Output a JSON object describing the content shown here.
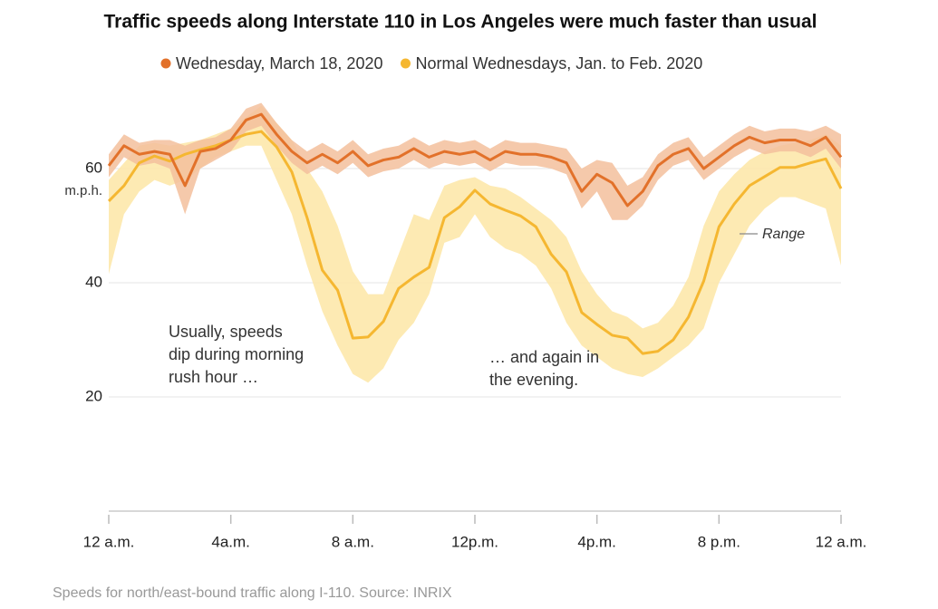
{
  "chart_data": {
    "type": "line",
    "title": "Traffic speeds along Interstate 110 in Los Angeles were much faster than usual",
    "y_unit": "m.p.h.",
    "source": "Speeds for north/east-bound traffic along I-110. Source: INRIX",
    "range_label": "Range",
    "annotations": [
      {
        "lines": [
          "Usually, speeds",
          "dip during morning",
          "rush hour …"
        ]
      },
      {
        "lines": [
          "… and again in",
          "the evening."
        ]
      }
    ],
    "xlim": [
      0,
      24
    ],
    "xticks": [
      {
        "value": 0,
        "label": "12 a.m."
      },
      {
        "value": 4,
        "label": "4a.m."
      },
      {
        "value": 8,
        "label": "8 a.m."
      },
      {
        "value": 12,
        "label": "12p.m."
      },
      {
        "value": 16,
        "label": "4p.m."
      },
      {
        "value": 20,
        "label": "8 p.m."
      },
      {
        "value": 24,
        "label": "12 a.m."
      }
    ],
    "ylim": [
      0,
      72
    ],
    "yticks": [
      20,
      40,
      60
    ],
    "grid": true,
    "x": [
      0,
      0.5,
      1,
      1.5,
      2,
      2.5,
      3,
      3.5,
      4,
      4.5,
      5,
      5.5,
      6,
      6.5,
      7,
      7.5,
      8,
      8.5,
      9,
      9.5,
      10,
      10.5,
      11,
      11.5,
      12,
      12.5,
      13,
      13.5,
      14,
      14.5,
      15,
      15.5,
      16,
      16.5,
      17,
      17.5,
      18,
      18.5,
      19,
      19.5,
      20,
      20.5,
      21,
      21.5,
      22,
      22.5,
      23,
      23.5,
      24
    ],
    "series": [
      {
        "name": "Normal Wednesdays, Jan. to Feb. 2020",
        "color": "#f5b731",
        "band_color": "#fde6a6",
        "values": [
          54.3,
          57,
          61,
          62.2,
          61.3,
          62.5,
          63.3,
          64,
          65,
          66,
          66.5,
          63.8,
          59.4,
          51.4,
          42.2,
          38.7,
          30.3,
          30.5,
          33.2,
          39,
          41,
          42.7,
          51.4,
          53.3,
          56.2,
          53.8,
          52.7,
          51.7,
          49.8,
          45,
          41.9,
          34.8,
          32.7,
          30.8,
          30.3,
          27.6,
          28,
          30,
          34,
          40.3,
          49.8,
          53.8,
          57,
          58.6,
          60.2,
          60.2,
          61,
          61.7,
          56.5
        ],
        "low": [
          41.5,
          52,
          56,
          58,
          57,
          58,
          60,
          62,
          63,
          64,
          64,
          58,
          52,
          43,
          35,
          29,
          24,
          22.5,
          25,
          30,
          33,
          38,
          47,
          48,
          52,
          48,
          46,
          45,
          43,
          39,
          33,
          29,
          27,
          25,
          24,
          23.5,
          25,
          27,
          29,
          32,
          40,
          45,
          50,
          53,
          55,
          55,
          54,
          53,
          43
        ],
        "high": [
          58,
          61,
          64,
          64.5,
          64,
          64.5,
          65,
          66,
          67,
          69,
          71,
          68,
          65,
          60,
          56,
          50,
          42,
          38,
          38,
          45,
          52,
          51,
          57,
          58,
          58.5,
          57,
          56.5,
          55,
          53,
          51,
          48,
          42,
          38,
          35,
          34,
          32,
          33,
          36,
          41,
          50,
          56,
          59,
          61.5,
          63,
          64,
          64.5,
          65,
          66,
          64
        ]
      },
      {
        "name": "Wednesday, March 18, 2020",
        "color": "#e2712a",
        "band_color": "#f3c09c",
        "values": [
          60.5,
          64,
          62.5,
          63,
          62.5,
          57,
          63,
          63.5,
          65,
          68.5,
          69.5,
          66,
          63,
          61,
          62.5,
          61,
          63,
          60.5,
          61.5,
          62,
          63.5,
          62,
          63,
          62.5,
          63,
          61.5,
          63,
          62.5,
          62.5,
          62,
          61,
          56,
          59,
          57.5,
          53.5,
          56,
          60.5,
          62.5,
          63.5,
          60,
          62,
          64,
          65.5,
          64.5,
          65,
          65,
          64,
          65.5,
          62
        ],
        "low": [
          58.5,
          62,
          60.5,
          61,
          60,
          52,
          60,
          61.5,
          63,
          66.5,
          67.5,
          64,
          61,
          59,
          60.5,
          59,
          61,
          58.5,
          59.5,
          60,
          61.5,
          60,
          61,
          60.5,
          61,
          59.5,
          61,
          60.5,
          60.5,
          60,
          59,
          53,
          56,
          51,
          51,
          53.5,
          58,
          60.5,
          61.5,
          58,
          60,
          62,
          63.5,
          62.5,
          63,
          63,
          62,
          63.5,
          60
        ],
        "high": [
          62.5,
          66,
          64.5,
          65,
          65,
          64,
          65,
          65.5,
          67,
          70.5,
          71.5,
          68,
          65,
          63,
          64.5,
          63,
          65,
          62.5,
          63.5,
          64,
          65.5,
          64,
          65,
          64.5,
          65,
          63.5,
          65,
          64.5,
          64.5,
          64,
          63.5,
          60,
          61.5,
          61,
          57,
          58.5,
          62.5,
          64.5,
          65.5,
          62,
          64,
          66,
          67.5,
          66.5,
          67,
          67,
          66.5,
          67.5,
          66
        ]
      }
    ],
    "legend_order": [
      1,
      0
    ]
  }
}
